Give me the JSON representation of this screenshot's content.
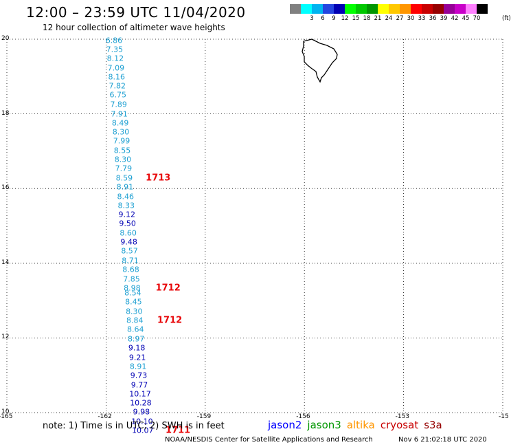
{
  "header": {
    "title": "12:00 – 23:59 UTC 11/04/2020",
    "subtitle": "12 hour collection of altimeter wave heights"
  },
  "legend": {
    "unit": "(ft)",
    "swatches": [
      {
        "color": "#808080",
        "label": ""
      },
      {
        "color": "#00ffff",
        "label": "3"
      },
      {
        "color": "#00b4f0",
        "label": "6"
      },
      {
        "color": "#2446e0",
        "label": "9"
      },
      {
        "color": "#0000b4",
        "label": "12"
      },
      {
        "color": "#00ff00",
        "label": "15"
      },
      {
        "color": "#00c800",
        "label": "18"
      },
      {
        "color": "#009600",
        "label": "21"
      },
      {
        "color": "#ffff00",
        "label": "24"
      },
      {
        "color": "#ffc800",
        "label": "27"
      },
      {
        "color": "#ff9600",
        "label": "30"
      },
      {
        "color": "#ff0000",
        "label": "33"
      },
      {
        "color": "#c80000",
        "label": "36"
      },
      {
        "color": "#960000",
        "label": "39"
      },
      {
        "color": "#960096",
        "label": "42"
      },
      {
        "color": "#c800c8",
        "label": "45"
      },
      {
        "color": "#ff80ff",
        "label": "70"
      },
      {
        "color": "#000000",
        "label": ""
      }
    ]
  },
  "map": {
    "lon_range": [
      -165,
      -150
    ],
    "lat_range": [
      10,
      20
    ],
    "lat_ticks": [
      "20",
      "18",
      "16",
      "14",
      "12",
      "10"
    ],
    "lon_ticks": [
      "-165",
      "-162",
      "-159",
      "-156",
      "-153",
      "-15"
    ],
    "island": "Hawaii (Big Island)"
  },
  "wave_heights": [
    {
      "lon": -161.76,
      "lat": 19.97,
      "value": "6.86",
      "color": "#1ea0d2"
    },
    {
      "lon": -161.74,
      "lat": 19.73,
      "value": "7.35",
      "color": "#1ea0d2"
    },
    {
      "lon": -161.72,
      "lat": 19.48,
      "value": "8.12",
      "color": "#1ea0d2"
    },
    {
      "lon": -161.7,
      "lat": 19.23,
      "value": "7.09",
      "color": "#1ea0d2"
    },
    {
      "lon": -161.68,
      "lat": 18.99,
      "value": "8.16",
      "color": "#1ea0d2"
    },
    {
      "lon": -161.66,
      "lat": 18.74,
      "value": "7.82",
      "color": "#1ea0d2"
    },
    {
      "lon": -161.64,
      "lat": 18.5,
      "value": "6.75",
      "color": "#1ea0d2"
    },
    {
      "lon": -161.62,
      "lat": 18.25,
      "value": "7.89",
      "color": "#1ea0d2"
    },
    {
      "lon": -161.6,
      "lat": 18.0,
      "value": "7.91",
      "color": "#1ea0d2"
    },
    {
      "lon": -161.57,
      "lat": 17.76,
      "value": "8.49",
      "color": "#1ea0d2"
    },
    {
      "lon": -161.55,
      "lat": 17.51,
      "value": "8.30",
      "color": "#1ea0d2"
    },
    {
      "lon": -161.53,
      "lat": 17.27,
      "value": "7.99",
      "color": "#1ea0d2"
    },
    {
      "lon": -161.51,
      "lat": 17.02,
      "value": "8.55",
      "color": "#1ea0d2"
    },
    {
      "lon": -161.49,
      "lat": 16.78,
      "value": "8.30",
      "color": "#1ea0d2"
    },
    {
      "lon": -161.47,
      "lat": 16.53,
      "value": "7.79",
      "color": "#1ea0d2"
    },
    {
      "lon": -161.45,
      "lat": 16.28,
      "value": "8.59",
      "color": "#1ea0d2"
    },
    {
      "lon": -161.43,
      "lat": 16.04,
      "value": "8.91",
      "color": "#1ea0d2"
    },
    {
      "lon": -161.41,
      "lat": 15.79,
      "value": "8.46",
      "color": "#1ea0d2"
    },
    {
      "lon": -161.39,
      "lat": 15.55,
      "value": "8.33",
      "color": "#1ea0d2"
    },
    {
      "lon": -161.37,
      "lat": 15.3,
      "value": "9.12",
      "color": "#0000b4"
    },
    {
      "lon": -161.35,
      "lat": 15.06,
      "value": "9.50",
      "color": "#0000b4"
    },
    {
      "lon": -161.33,
      "lat": 14.81,
      "value": "8.60",
      "color": "#1ea0d2"
    },
    {
      "lon": -161.31,
      "lat": 14.56,
      "value": "9.48",
      "color": "#0000b4"
    },
    {
      "lon": -161.29,
      "lat": 14.32,
      "value": "8.57",
      "color": "#1ea0d2"
    },
    {
      "lon": -161.27,
      "lat": 14.07,
      "value": "8.71",
      "color": "#1ea0d2"
    },
    {
      "lon": -161.25,
      "lat": 13.83,
      "value": "8.68",
      "color": "#1ea0d2"
    },
    {
      "lon": -161.23,
      "lat": 13.58,
      "value": "7.85",
      "color": "#1ea0d2"
    },
    {
      "lon": -161.21,
      "lat": 13.33,
      "value": "8.98",
      "color": "#1ea0d2"
    },
    {
      "lon": -161.19,
      "lat": 13.2,
      "value": "8.54",
      "color": "#1ea0d2"
    },
    {
      "lon": -161.17,
      "lat": 12.96,
      "value": "8.45",
      "color": "#1ea0d2"
    },
    {
      "lon": -161.15,
      "lat": 12.71,
      "value": "8.30",
      "color": "#1ea0d2"
    },
    {
      "lon": -161.13,
      "lat": 12.46,
      "value": "8.84",
      "color": "#1ea0d2"
    },
    {
      "lon": -161.11,
      "lat": 12.22,
      "value": "8.64",
      "color": "#1ea0d2"
    },
    {
      "lon": -161.09,
      "lat": 11.97,
      "value": "8.97",
      "color": "#1ea0d2"
    },
    {
      "lon": -161.07,
      "lat": 11.73,
      "value": "9.18",
      "color": "#0000b4"
    },
    {
      "lon": -161.05,
      "lat": 11.48,
      "value": "9.21",
      "color": "#0000b4"
    },
    {
      "lon": -161.03,
      "lat": 11.24,
      "value": "8.91",
      "color": "#1ea0d2"
    },
    {
      "lon": -161.01,
      "lat": 10.99,
      "value": "9.73",
      "color": "#0000b4"
    },
    {
      "lon": -160.99,
      "lat": 10.74,
      "value": "9.77",
      "color": "#0000b4"
    },
    {
      "lon": -160.97,
      "lat": 10.5,
      "value": "10.17",
      "color": "#0000b4"
    },
    {
      "lon": -160.95,
      "lat": 10.25,
      "value": "10.28",
      "color": "#0000b4"
    },
    {
      "lon": -160.93,
      "lat": 10.01,
      "value": "9.98",
      "color": "#0000b4"
    },
    {
      "lon": -160.91,
      "lat": 9.76,
      "value": "10.10",
      "color": "#0000b4"
    },
    {
      "lon": -160.89,
      "lat": 9.52,
      "value": "10.07",
      "color": "#0000b4"
    }
  ],
  "pass_times": [
    {
      "lon": -160.8,
      "lat": 16.28,
      "label": "1713"
    },
    {
      "lon": -160.5,
      "lat": 13.33,
      "label": "1712"
    },
    {
      "lon": -160.45,
      "lat": 12.46,
      "label": "1712"
    },
    {
      "lon": -160.2,
      "lat": 9.52,
      "label": "1711"
    }
  ],
  "footer": {
    "note": "note: 1) Time is in UTC; 2) SWH is in feet",
    "satellites": [
      {
        "name": "jason2",
        "color": "#0000ff"
      },
      {
        "name": "jason3",
        "color": "#009600"
      },
      {
        "name": "altika",
        "color": "#ff9600"
      },
      {
        "name": "cryosat",
        "color": "#c80000"
      },
      {
        "name": "s3a",
        "color": "#960000"
      }
    ],
    "credit": "NOAA/NESDIS Center for Satellite Applications and Research",
    "generated": "Nov  6 21:02:18 UTC 2020"
  }
}
